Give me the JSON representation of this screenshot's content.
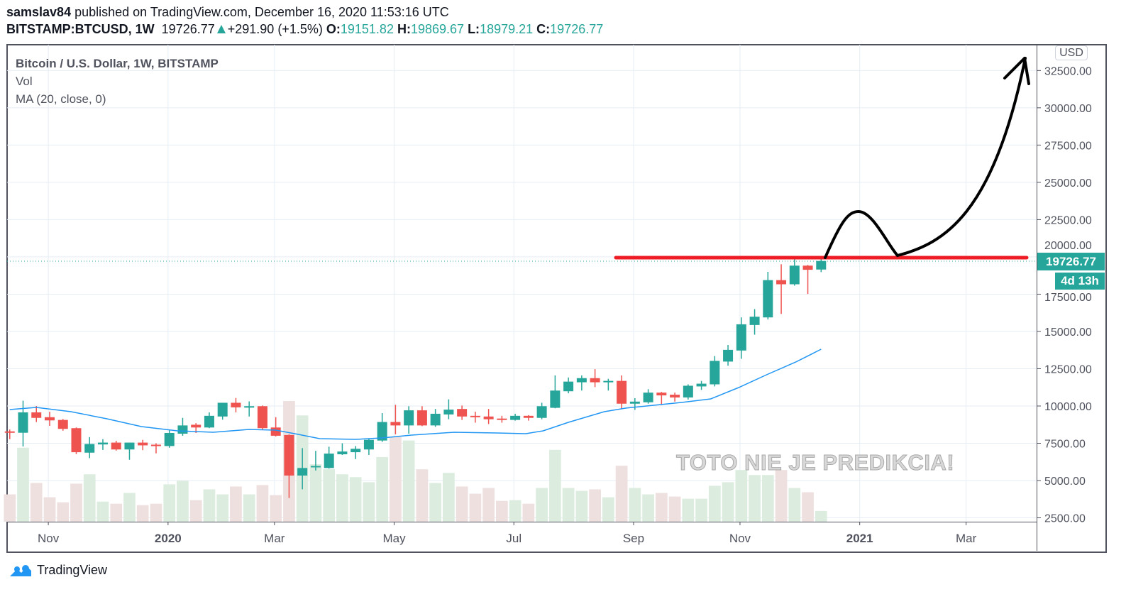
{
  "header": {
    "author": "samslav84",
    "published": " published on TradingView.com, December 16, 2020 11:53:16 UTC",
    "symbol": "BITSTAMP:BTCUSD, 1W",
    "price": "19726.77",
    "change": "+291.90 (+1.5%)",
    "o_label": "O:",
    "o_value": "19151.82",
    "h_label": "H:",
    "h_value": "19869.67",
    "l_label": "L:",
    "l_value": "18979.21",
    "c_label": "C:",
    "c_value": "19726.77"
  },
  "legend": {
    "title": "Bitcoin / U.S. Dollar, 1W, BITSTAMP",
    "vol": "Vol",
    "ma": "MA (20, close, 0)"
  },
  "axis": {
    "currency_button": "USD",
    "last_price": "19726.77",
    "countdown": "4d 13h"
  },
  "watermark": "TOTO NIE JE PREDIKCIA!",
  "footer": {
    "brand": "TradingView"
  },
  "colors": {
    "up": "#26a69a",
    "down": "#ef5350",
    "ma": "#2196f3",
    "drawing_line": "#ee1c25",
    "drawing_arrow": "#000000",
    "grid": "#e6eef4"
  },
  "chart_data": {
    "type": "candlestick",
    "title": "Bitcoin / U.S. Dollar, 1W, BITSTAMP",
    "ylabel": "USD",
    "ylim": [
      2240,
      34230
    ],
    "xlim_index": [
      -0.2,
      77.2
    ],
    "y_ticks": [
      2500,
      5000,
      7500,
      10000,
      12500,
      15000,
      17500,
      20000,
      22500,
      25000,
      27500,
      30000,
      32500
    ],
    "x_ticks": [
      {
        "label": "Nov",
        "index": 2.9
      },
      {
        "label": "2020",
        "index": 11.9
      },
      {
        "label": "Mar",
        "index": 19.9
      },
      {
        "label": "May",
        "index": 28.9
      },
      {
        "label": "Jul",
        "index": 37.9
      },
      {
        "label": "Sep",
        "index": 46.9
      },
      {
        "label": "Nov",
        "index": 54.9
      },
      {
        "label": "2021",
        "index": 63.9
      },
      {
        "label": "Mar",
        "index": 71.9
      }
    ],
    "ohlc": [
      [
        8297,
        8420,
        7775,
        8205
      ],
      [
        8205,
        10354,
        7284,
        9571
      ],
      [
        9571,
        10000,
        8926,
        9203
      ],
      [
        9249,
        9617,
        8665,
        9034
      ],
      [
        9064,
        9126,
        8343,
        8466
      ],
      [
        8512,
        8560,
        6777,
        6900
      ],
      [
        6870,
        7913,
        6501,
        7452
      ],
      [
        7422,
        7775,
        7053,
        7545
      ],
      [
        7545,
        7668,
        7007,
        7084
      ],
      [
        7084,
        7545,
        6393,
        7545
      ],
      [
        7545,
        7729,
        7038,
        7360
      ],
      [
        7406,
        7499,
        6823,
        7315
      ],
      [
        7315,
        8358,
        7200,
        8190
      ],
      [
        8143,
        9203,
        8005,
        8696
      ],
      [
        8742,
        8850,
        8190,
        8558
      ],
      [
        8558,
        9571,
        8512,
        9341
      ],
      [
        9295,
        10216,
        9080,
        10216
      ],
      [
        10216,
        10538,
        9571,
        9909
      ],
      [
        9894,
        10308,
        9295,
        9986
      ],
      [
        9986,
        10032,
        8389,
        8512
      ],
      [
        8558,
        9249,
        7959,
        8005
      ],
      [
        8051,
        8100,
        3830,
        5334
      ],
      [
        5334,
        7176,
        4413,
        5841
      ],
      [
        5887,
        6992,
        5672,
        5979
      ],
      [
        5841,
        7269,
        5800,
        6808
      ],
      [
        6762,
        7499,
        6716,
        6946
      ],
      [
        6900,
        7315,
        6440,
        7130
      ],
      [
        7084,
        7821,
        6716,
        7729
      ],
      [
        7683,
        9525,
        7591,
        8926
      ],
      [
        8926,
        10078,
        8097,
        8696
      ],
      [
        8696,
        9986,
        8143,
        9709
      ],
      [
        9709,
        9986,
        8650,
        8696
      ],
      [
        8696,
        9801,
        8604,
        9479
      ],
      [
        9433,
        10446,
        9111,
        9755
      ],
      [
        9801,
        10032,
        9065,
        9295
      ],
      [
        9341,
        9617,
        8880,
        9249
      ],
      [
        9295,
        9801,
        8788,
        9111
      ],
      [
        9157,
        9341,
        8880,
        9065
      ],
      [
        9065,
        9479,
        9019,
        9341
      ],
      [
        9341,
        9387,
        9019,
        9203
      ],
      [
        9203,
        10216,
        9111,
        9986
      ],
      [
        9877,
        12053,
        9846,
        11035
      ],
      [
        10988,
        11914,
        10850,
        11636
      ],
      [
        11590,
        12053,
        11035,
        11868
      ],
      [
        11868,
        12470,
        11266,
        11590
      ],
      [
        11590,
        11822,
        11035,
        11683
      ],
      [
        11683,
        12053,
        9785,
        10155
      ],
      [
        10155,
        10525,
        9738,
        10294
      ],
      [
        10248,
        11127,
        10155,
        10896
      ],
      [
        10896,
        10942,
        10062,
        10711
      ],
      [
        10757,
        10896,
        10294,
        10572
      ],
      [
        10572,
        11451,
        10433,
        11359
      ],
      [
        11312,
        11683,
        11081,
        11497
      ],
      [
        11451,
        13349,
        11312,
        13025
      ],
      [
        12979,
        14090,
        12701,
        13766
      ],
      [
        13720,
        15942,
        13164,
        15479
      ],
      [
        15433,
        16497,
        14784,
        15988
      ],
      [
        15941,
        18997,
        15803,
        18441
      ],
      [
        18441,
        19506,
        16173,
        18163
      ],
      [
        18163,
        19892,
        18071,
        19413
      ],
      [
        19413,
        19460,
        17515,
        19135
      ],
      [
        19151.82,
        19869.67,
        18979.21,
        19726.77
      ]
    ],
    "volume": [
      38,
      103,
      54,
      34,
      27,
      53,
      66,
      28,
      25,
      40,
      23,
      25,
      52,
      57,
      30,
      45,
      38,
      49,
      38,
      51,
      37,
      168,
      148,
      80,
      73,
      66,
      62,
      55,
      90,
      118,
      113,
      73,
      54,
      68,
      49,
      39,
      47,
      29,
      30,
      25,
      47,
      100,
      47,
      43,
      45,
      34,
      78,
      47,
      38,
      40,
      35,
      32,
      32,
      50,
      55,
      72,
      65,
      65,
      72,
      47,
      41,
      15
    ],
    "ma20": [
      [
        0,
        9762
      ],
      [
        2,
        9905
      ],
      [
        4.6,
        9619
      ],
      [
        7.3,
        9143
      ],
      [
        9.9,
        8620
      ],
      [
        12.6,
        8334
      ],
      [
        15.3,
        8239
      ],
      [
        18,
        8429
      ],
      [
        20,
        8382
      ],
      [
        21.7,
        8096
      ],
      [
        23.3,
        7810
      ],
      [
        26,
        7763
      ],
      [
        28,
        7858
      ],
      [
        30.2,
        8048
      ],
      [
        33.4,
        8239
      ],
      [
        36.6,
        8191
      ],
      [
        38.8,
        8144
      ],
      [
        40.1,
        8334
      ],
      [
        42,
        8905
      ],
      [
        44.7,
        9619
      ],
      [
        46.3,
        9857
      ],
      [
        48.4,
        10048
      ],
      [
        50.5,
        10238
      ],
      [
        52.7,
        10476
      ],
      [
        54.8,
        11238
      ],
      [
        56.9,
        12094
      ],
      [
        59.1,
        12951
      ],
      [
        61,
        13808
      ]
    ],
    "horizontal_line_price": 19950
  }
}
